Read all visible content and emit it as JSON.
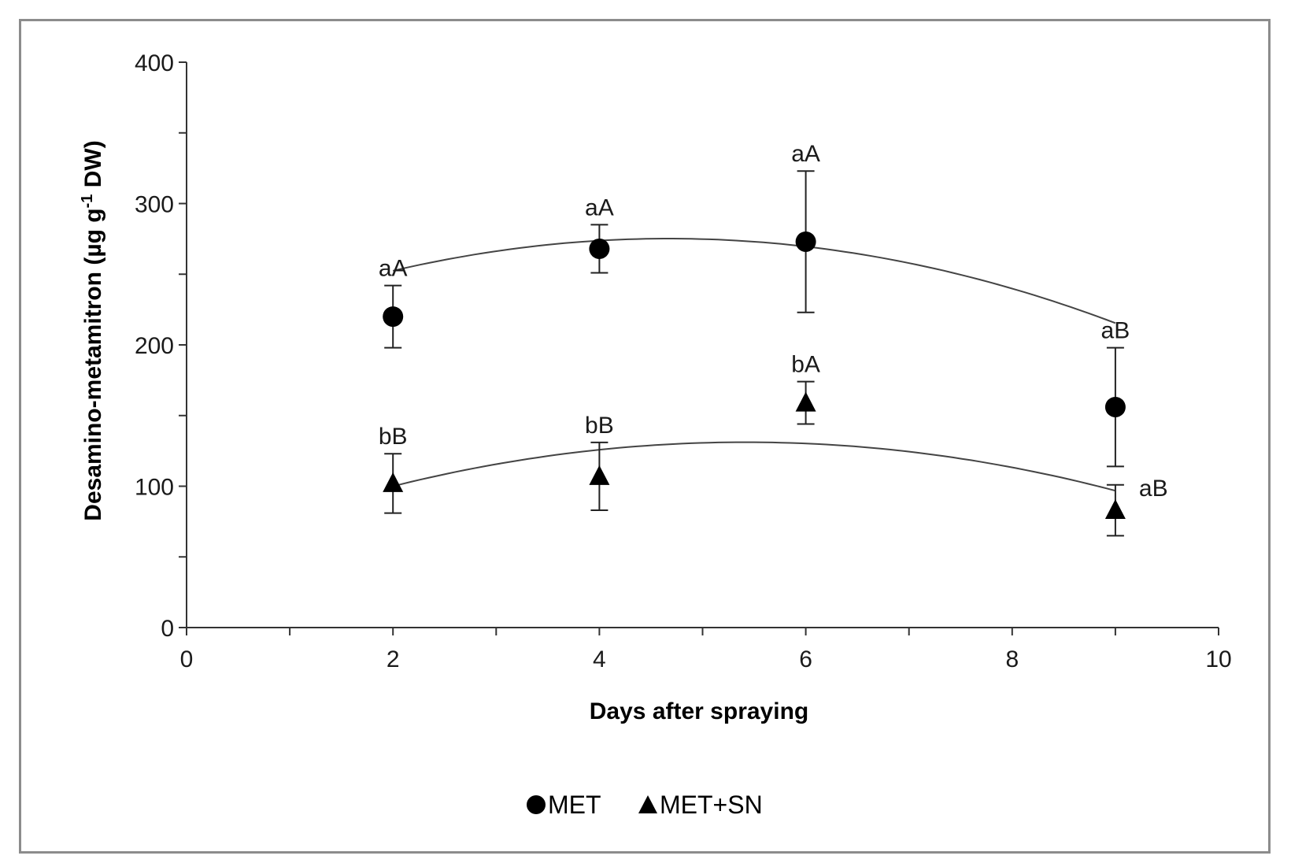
{
  "chart_data": {
    "type": "scatter",
    "title": "",
    "xlabel": "Days after spraying",
    "ylabel_main": "Desamino-metamitron  (µg g",
    "ylabel_sup": "-1",
    "ylabel_end": " DW)",
    "xlim": [
      0,
      10
    ],
    "ylim": [
      0,
      400
    ],
    "xticks": [
      0,
      2,
      4,
      6,
      8,
      10
    ],
    "xminor": [
      1,
      3,
      5,
      7,
      9
    ],
    "yticks": [
      0,
      100,
      200,
      300,
      400
    ],
    "yminor": [
      50,
      150,
      250,
      350
    ],
    "grid": false,
    "legend_position": "bottom-center",
    "series": [
      {
        "name": "MET",
        "marker": "circle",
        "color": "#000000",
        "x": [
          2,
          4,
          6,
          9
        ],
        "y": [
          220,
          268,
          273,
          156
        ],
        "err": [
          22,
          17,
          50,
          42
        ],
        "labels": [
          "aA",
          "aA",
          "aA",
          "aB"
        ],
        "fit": [
          -3.19,
          29.8,
          205.6
        ]
      },
      {
        "name": "MET+SN",
        "marker": "triangle",
        "color": "#000000",
        "x": [
          2,
          4,
          6,
          9
        ],
        "y": [
          102,
          107,
          159,
          83
        ],
        "err": [
          21,
          24,
          15,
          18
        ],
        "labels": [
          "bB",
          "bB",
          "bA",
          "aB"
        ],
        "fit": [
          -2.67,
          28.92,
          52.84
        ]
      }
    ]
  }
}
